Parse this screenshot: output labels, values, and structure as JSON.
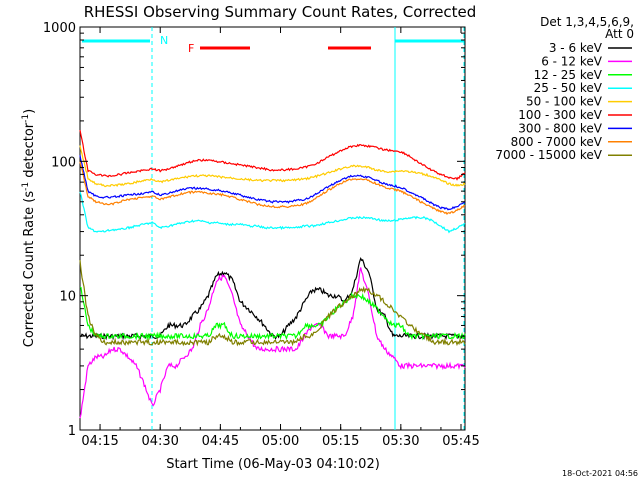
{
  "chart_data": {
    "type": "line",
    "title": "RHESSI Observing Summary Count Rates, Corrected",
    "xlabel": "Start Time (06-May-03 04:10:02)",
    "ylabel": "Corrected Count Rate (s⁻¹ detector⁻¹)",
    "ylabel_main": "Corrected Count Rate (s",
    "ylabel_sup1": "-1",
    "ylabel_mid": " detector",
    "ylabel_sup2": "-1",
    "ylabel_end": ")",
    "y_scale": "log",
    "ylim": [
      1,
      1000
    ],
    "xlim_minutes": [
      4,
      68
    ],
    "x_ticks": [
      {
        "label": "04:15",
        "min": 15
      },
      {
        "label": "04:30",
        "min": 30
      },
      {
        "label": "04:45",
        "min": 45
      },
      {
        "label": "05:00",
        "min": 60
      },
      {
        "label": "05:15",
        "min": 75
      },
      {
        "label": "05:30",
        "min": 90
      },
      {
        "label": "05:45",
        "min": 105
      }
    ],
    "y_ticks": [
      {
        "label": "1",
        "v": 1
      },
      {
        "label": "10",
        "v": 10
      },
      {
        "label": "100",
        "v": 100
      },
      {
        "label": "1000",
        "v": 1000
      }
    ],
    "legend_header": "Det 1,3,4,5,6,9,",
    "legend_header2": "Att 0",
    "legend_placement": "right",
    "series": [
      {
        "name": "3 - 6 keV",
        "color": "#000000",
        "x": [
          10,
          12,
          14,
          16,
          18,
          20,
          22,
          24,
          26,
          28,
          30,
          32,
          34,
          36,
          38,
          40,
          42,
          44,
          46,
          48,
          50,
          52,
          54,
          56,
          58,
          60,
          62,
          64,
          66,
          68,
          70,
          72,
          74,
          76,
          78,
          80,
          82,
          84,
          86,
          88,
          90,
          92,
          94,
          96,
          98,
          100,
          102,
          104,
          106
        ],
        "values": [
          5,
          5,
          5,
          5,
          5,
          5,
          5,
          5,
          5,
          5,
          5,
          6,
          6,
          6,
          7,
          8,
          10,
          14,
          15,
          13,
          9,
          8,
          7,
          6,
          5,
          5,
          6,
          7,
          9,
          11,
          11,
          10,
          10,
          9,
          11,
          19,
          15,
          8,
          7,
          5,
          5,
          5,
          5,
          5,
          5,
          5,
          5,
          5,
          5
        ]
      },
      {
        "name": "6 - 12 keV",
        "color": "#ff00ff",
        "x": [
          10,
          12,
          14,
          16,
          18,
          20,
          22,
          24,
          26,
          28,
          30,
          32,
          34,
          36,
          38,
          40,
          42,
          44,
          46,
          48,
          50,
          52,
          54,
          56,
          58,
          60,
          62,
          64,
          66,
          68,
          70,
          72,
          74,
          76,
          78,
          80,
          82,
          84,
          86,
          88,
          90,
          92,
          94,
          96,
          98,
          100,
          102,
          104,
          106
        ],
        "values": [
          1.2,
          3,
          3.5,
          3.5,
          4,
          4,
          3.5,
          3,
          2.2,
          1.5,
          2,
          3,
          3,
          3.5,
          4,
          6,
          8,
          13,
          14,
          10,
          6,
          5,
          4,
          4,
          4,
          4,
          4,
          4,
          5,
          6,
          6,
          5,
          5,
          5,
          7,
          16,
          10,
          5,
          4,
          3.5,
          3,
          3,
          3,
          3,
          3,
          3,
          3,
          3,
          3
        ]
      },
      {
        "name": "12 - 25 keV",
        "color": "#00ff00",
        "x": [
          10,
          12,
          14,
          16,
          18,
          20,
          22,
          24,
          26,
          28,
          30,
          32,
          34,
          36,
          38,
          40,
          42,
          44,
          46,
          48,
          50,
          52,
          54,
          56,
          58,
          60,
          62,
          64,
          66,
          68,
          70,
          72,
          74,
          76,
          78,
          80,
          82,
          84,
          86,
          88,
          90,
          92,
          94,
          96,
          98,
          100,
          102,
          104,
          106
        ],
        "values": [
          12,
          6,
          5,
          5,
          5,
          5,
          5,
          5,
          5,
          5,
          5,
          5,
          5,
          5,
          5,
          5,
          5,
          6,
          6,
          5,
          5,
          5,
          5,
          5,
          5,
          5,
          5,
          5,
          6,
          6,
          6,
          7,
          8,
          9,
          10,
          10,
          9,
          8,
          7,
          6,
          6,
          5,
          5,
          5,
          5,
          5,
          5,
          5,
          5
        ]
      },
      {
        "name": "25 - 50 keV",
        "color": "#00ffff",
        "x": [
          10,
          12,
          14,
          16,
          18,
          20,
          22,
          24,
          26,
          28,
          30,
          32,
          34,
          36,
          38,
          40,
          42,
          44,
          46,
          48,
          50,
          52,
          54,
          56,
          58,
          60,
          62,
          64,
          66,
          68,
          70,
          72,
          74,
          76,
          78,
          80,
          82,
          84,
          86,
          88,
          90,
          92,
          94,
          96,
          98,
          100,
          102,
          104,
          106
        ],
        "values": [
          60,
          32,
          30,
          30,
          31,
          31,
          32,
          33,
          34,
          35,
          32,
          33,
          34,
          35,
          36,
          36,
          35,
          35,
          34,
          34,
          34,
          33,
          33,
          32,
          32,
          32,
          32,
          32,
          33,
          33,
          34,
          35,
          36,
          37,
          38,
          38,
          38,
          37,
          36,
          36,
          37,
          38,
          38,
          38,
          36,
          33,
          30,
          32,
          34
        ]
      },
      {
        "name": "50 - 100 keV",
        "color": "#ffcc00",
        "x": [
          10,
          12,
          14,
          16,
          18,
          20,
          22,
          24,
          26,
          28,
          30,
          32,
          34,
          36,
          38,
          40,
          42,
          44,
          46,
          48,
          50,
          52,
          54,
          56,
          58,
          60,
          62,
          64,
          66,
          68,
          70,
          72,
          74,
          76,
          78,
          80,
          82,
          84,
          86,
          88,
          90,
          92,
          94,
          96,
          98,
          100,
          102,
          104,
          106
        ],
        "values": [
          130,
          75,
          68,
          66,
          66,
          67,
          68,
          70,
          72,
          74,
          70,
          72,
          74,
          76,
          78,
          78,
          78,
          77,
          76,
          75,
          74,
          73,
          72,
          72,
          72,
          72,
          72,
          73,
          74,
          76,
          79,
          82,
          86,
          90,
          92,
          92,
          90,
          86,
          84,
          84,
          85,
          84,
          82,
          80,
          77,
          72,
          68,
          66,
          68
        ]
      },
      {
        "name": "100 - 300 keV",
        "color": "#ff0000",
        "x": [
          10,
          12,
          14,
          16,
          18,
          20,
          22,
          24,
          26,
          28,
          30,
          32,
          34,
          36,
          38,
          40,
          42,
          44,
          46,
          48,
          50,
          52,
          54,
          56,
          58,
          60,
          62,
          64,
          66,
          68,
          70,
          72,
          74,
          76,
          78,
          80,
          82,
          84,
          86,
          88,
          90,
          92,
          94,
          96,
          98,
          100,
          102,
          104,
          106
        ],
        "values": [
          170,
          85,
          80,
          78,
          78,
          80,
          82,
          84,
          86,
          88,
          85,
          88,
          92,
          96,
          100,
          102,
          102,
          100,
          98,
          96,
          94,
          92,
          90,
          88,
          86,
          86,
          87,
          88,
          90,
          94,
          100,
          108,
          116,
          124,
          130,
          132,
          130,
          126,
          122,
          120,
          118,
          110,
          100,
          92,
          85,
          80,
          76,
          74,
          82
        ]
      },
      {
        "name": "300 - 800 keV",
        "color": "#0000ff",
        "x": [
          10,
          12,
          14,
          16,
          18,
          20,
          22,
          24,
          26,
          28,
          30,
          32,
          34,
          36,
          38,
          40,
          42,
          44,
          46,
          48,
          50,
          52,
          54,
          56,
          58,
          60,
          62,
          64,
          66,
          68,
          70,
          72,
          74,
          76,
          78,
          80,
          82,
          84,
          86,
          88,
          90,
          92,
          94,
          96,
          98,
          100,
          102,
          104,
          106
        ],
        "values": [
          110,
          60,
          55,
          54,
          54,
          55,
          56,
          57,
          58,
          59,
          56,
          58,
          60,
          62,
          63,
          63,
          62,
          61,
          60,
          58,
          56,
          54,
          52,
          51,
          50,
          50,
          50,
          51,
          52,
          55,
          60,
          65,
          70,
          75,
          78,
          78,
          76,
          72,
          68,
          66,
          64,
          60,
          56,
          52,
          48,
          45,
          44,
          46,
          50
        ]
      },
      {
        "name": "800 - 7000 keV",
        "color": "#ff8000",
        "x": [
          10,
          12,
          14,
          16,
          18,
          20,
          22,
          24,
          26,
          28,
          30,
          32,
          34,
          36,
          38,
          40,
          42,
          44,
          46,
          48,
          50,
          52,
          54,
          56,
          58,
          60,
          62,
          64,
          66,
          68,
          70,
          72,
          74,
          76,
          78,
          80,
          82,
          84,
          86,
          88,
          90,
          92,
          94,
          96,
          98,
          100,
          102,
          104,
          106
        ],
        "values": [
          100,
          55,
          50,
          48,
          48,
          50,
          52,
          53,
          54,
          55,
          52,
          54,
          56,
          58,
          59,
          59,
          58,
          57,
          56,
          54,
          52,
          50,
          48,
          47,
          46,
          46,
          46,
          47,
          48,
          51,
          56,
          61,
          66,
          71,
          74,
          74,
          72,
          68,
          64,
          62,
          60,
          56,
          52,
          48,
          45,
          42,
          41,
          43,
          47
        ]
      },
      {
        "name": "7000 - 15000 keV",
        "color": "#808000",
        "x": [
          10,
          12,
          14,
          16,
          18,
          20,
          22,
          24,
          26,
          28,
          30,
          32,
          34,
          36,
          38,
          40,
          42,
          44,
          46,
          48,
          50,
          52,
          54,
          56,
          58,
          60,
          62,
          64,
          66,
          68,
          70,
          72,
          74,
          76,
          78,
          80,
          82,
          84,
          86,
          88,
          90,
          92,
          94,
          96,
          98,
          100,
          102,
          104,
          106
        ],
        "values": [
          18,
          7,
          5,
          4.5,
          4.5,
          4.5,
          4.5,
          4.5,
          4.5,
          4.5,
          4.5,
          4.5,
          4.5,
          4.5,
          4.5,
          4.5,
          4.5,
          5,
          5,
          4.5,
          4.5,
          4.5,
          4.5,
          4.5,
          4.5,
          4.5,
          4.5,
          4.5,
          5,
          5,
          6,
          7,
          8,
          9,
          10,
          11,
          11,
          10,
          9,
          8,
          7,
          6,
          5.5,
          5,
          4.5,
          4.5,
          4.5,
          4.5,
          4.5
        ]
      }
    ],
    "annotations": {
      "night_label": "N",
      "flare_label": "F",
      "date_stamp": "18-Oct-2021 04:56"
    }
  }
}
